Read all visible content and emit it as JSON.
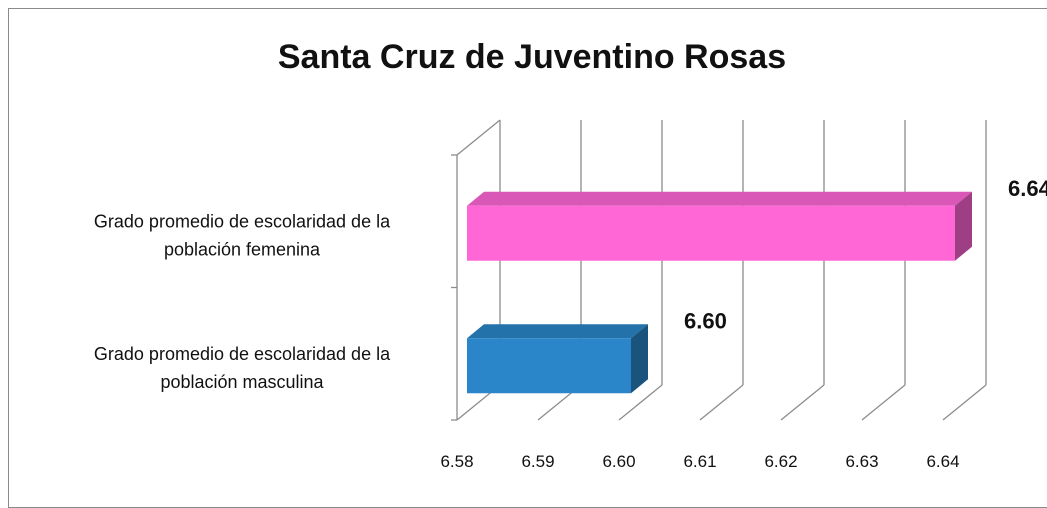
{
  "chart_data": {
    "type": "bar",
    "orientation": "horizontal",
    "title": "Santa Cruz de Juventino Rosas",
    "xlabel": "",
    "ylabel": "",
    "categories": [
      [
        "Grado promedio de escolaridad de la",
        "población femenina"
      ],
      [
        "Grado promedio de escolaridad de la",
        "población masculina"
      ]
    ],
    "values": [
      6.64,
      6.6
    ],
    "value_labels": [
      "6.64",
      "6.60"
    ],
    "colors": [
      "#ff66d6",
      "#2a86c8"
    ],
    "xlim": [
      6.58,
      6.64
    ],
    "ticks": [
      "6.58",
      "6.59",
      "6.60",
      "6.61",
      "6.62",
      "6.63",
      "6.64"
    ],
    "grid": true,
    "legend": "none"
  }
}
